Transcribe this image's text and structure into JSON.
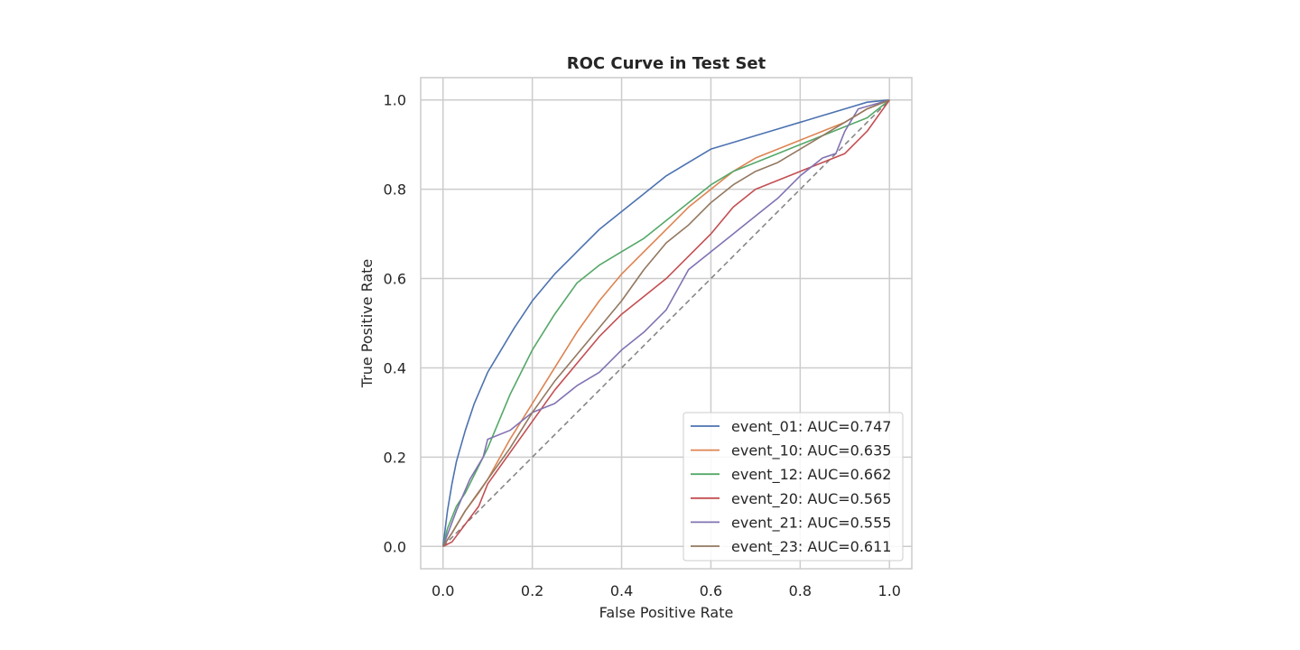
{
  "chart_data": {
    "type": "line",
    "title": "ROC Curve in Test Set",
    "xlabel": "False Positive Rate",
    "ylabel": "True Positive Rate",
    "xlim": [
      -0.05,
      1.05
    ],
    "ylim": [
      -0.05,
      1.05
    ],
    "xticks": [
      0.0,
      0.2,
      0.4,
      0.6,
      0.8,
      1.0
    ],
    "yticks": [
      0.0,
      0.2,
      0.4,
      0.6,
      0.8,
      1.0
    ],
    "xtick_labels": [
      "0.0",
      "0.2",
      "0.4",
      "0.6",
      "0.8",
      "1.0"
    ],
    "ytick_labels": [
      "0.0",
      "0.2",
      "0.4",
      "0.6",
      "0.8",
      "1.0"
    ],
    "grid": true,
    "legend_position": "lower-right",
    "reference_line": {
      "x": [
        0,
        1
      ],
      "y": [
        0,
        1
      ],
      "color": "#808080",
      "style": "dashed"
    },
    "series": [
      {
        "name": "event_01: AUC=0.747",
        "color": "#4c72b0",
        "x": [
          0,
          0.01,
          0.02,
          0.03,
          0.05,
          0.07,
          0.1,
          0.13,
          0.16,
          0.2,
          0.25,
          0.3,
          0.35,
          0.4,
          0.45,
          0.5,
          0.55,
          0.6,
          0.65,
          0.7,
          0.75,
          0.8,
          0.85,
          0.9,
          0.95,
          1.0
        ],
        "y": [
          0,
          0.08,
          0.14,
          0.19,
          0.26,
          0.32,
          0.39,
          0.44,
          0.49,
          0.55,
          0.61,
          0.66,
          0.71,
          0.75,
          0.79,
          0.83,
          0.86,
          0.89,
          0.905,
          0.92,
          0.935,
          0.95,
          0.965,
          0.98,
          0.995,
          1.0
        ]
      },
      {
        "name": "event_10: AUC=0.635",
        "color": "#dd8452",
        "x": [
          0,
          0.02,
          0.05,
          0.08,
          0.1,
          0.15,
          0.2,
          0.25,
          0.3,
          0.35,
          0.4,
          0.45,
          0.5,
          0.55,
          0.6,
          0.65,
          0.7,
          0.75,
          0.8,
          0.85,
          0.9,
          0.95,
          1.0
        ],
        "y": [
          0,
          0.03,
          0.08,
          0.12,
          0.15,
          0.24,
          0.32,
          0.4,
          0.48,
          0.55,
          0.61,
          0.66,
          0.71,
          0.76,
          0.8,
          0.84,
          0.87,
          0.89,
          0.91,
          0.93,
          0.95,
          0.98,
          1.0
        ]
      },
      {
        "name": "event_12: AUC=0.662",
        "color": "#55a868",
        "x": [
          0,
          0.01,
          0.03,
          0.05,
          0.08,
          0.1,
          0.15,
          0.2,
          0.25,
          0.3,
          0.35,
          0.4,
          0.45,
          0.5,
          0.55,
          0.6,
          0.65,
          0.7,
          0.75,
          0.8,
          0.85,
          0.9,
          0.95,
          1.0
        ],
        "y": [
          0,
          0.04,
          0.09,
          0.12,
          0.18,
          0.22,
          0.34,
          0.44,
          0.52,
          0.59,
          0.63,
          0.66,
          0.69,
          0.73,
          0.77,
          0.81,
          0.84,
          0.86,
          0.88,
          0.9,
          0.92,
          0.94,
          0.96,
          1.0
        ]
      },
      {
        "name": "event_20: AUC=0.565",
        "color": "#c44e52",
        "x": [
          0,
          0.02,
          0.05,
          0.08,
          0.1,
          0.15,
          0.2,
          0.25,
          0.3,
          0.35,
          0.4,
          0.45,
          0.5,
          0.55,
          0.6,
          0.65,
          0.7,
          0.75,
          0.8,
          0.85,
          0.9,
          0.95,
          1.0
        ],
        "y": [
          0,
          0.01,
          0.05,
          0.09,
          0.14,
          0.21,
          0.28,
          0.35,
          0.41,
          0.47,
          0.52,
          0.56,
          0.6,
          0.65,
          0.7,
          0.76,
          0.8,
          0.82,
          0.84,
          0.86,
          0.88,
          0.93,
          1.0
        ]
      },
      {
        "name": "event_21: AUC=0.555",
        "color": "#8172b3",
        "x": [
          0,
          0.03,
          0.06,
          0.09,
          0.1,
          0.15,
          0.2,
          0.25,
          0.3,
          0.35,
          0.4,
          0.45,
          0.5,
          0.55,
          0.6,
          0.65,
          0.7,
          0.75,
          0.8,
          0.85,
          0.88,
          0.9,
          0.93,
          1.0
        ],
        "y": [
          0,
          0.08,
          0.15,
          0.2,
          0.24,
          0.26,
          0.3,
          0.32,
          0.36,
          0.39,
          0.44,
          0.48,
          0.53,
          0.62,
          0.66,
          0.7,
          0.74,
          0.78,
          0.83,
          0.87,
          0.88,
          0.93,
          0.98,
          1.0
        ]
      },
      {
        "name": "event_23: AUC=0.611",
        "color": "#937860",
        "x": [
          0,
          0.02,
          0.05,
          0.1,
          0.15,
          0.2,
          0.25,
          0.3,
          0.35,
          0.4,
          0.45,
          0.5,
          0.55,
          0.6,
          0.65,
          0.7,
          0.75,
          0.8,
          0.85,
          0.9,
          0.95,
          1.0
        ],
        "y": [
          0,
          0.03,
          0.08,
          0.15,
          0.22,
          0.3,
          0.37,
          0.43,
          0.49,
          0.55,
          0.62,
          0.68,
          0.72,
          0.77,
          0.81,
          0.84,
          0.86,
          0.89,
          0.92,
          0.95,
          0.98,
          1.0
        ]
      }
    ]
  }
}
